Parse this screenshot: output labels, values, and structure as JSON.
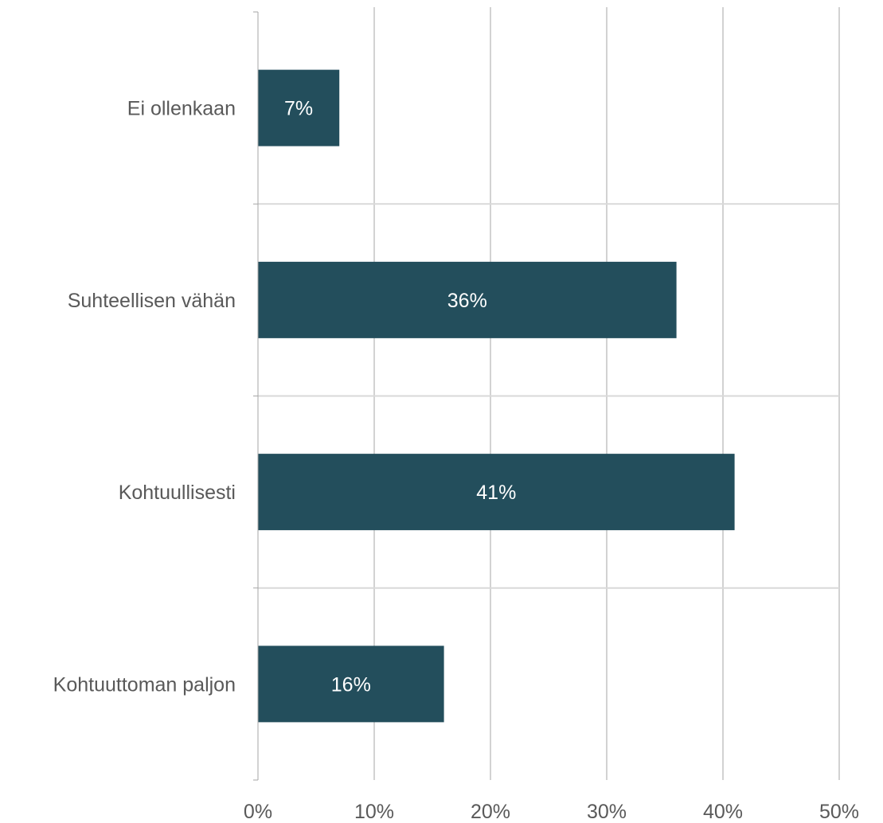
{
  "chart_data": {
    "type": "bar",
    "orientation": "horizontal",
    "categories": [
      "Ei ollenkaan",
      "Suhteellisen vähän",
      "Kohtuullisesti",
      "Kohtuuttoman paljon"
    ],
    "values": [
      7,
      36,
      41,
      16
    ],
    "data_labels": [
      "7%",
      "36%",
      "41%",
      "16%"
    ],
    "title": "",
    "xlabel": "",
    "ylabel": "",
    "xlim": [
      0,
      50
    ],
    "x_ticks": [
      0,
      10,
      20,
      30,
      40,
      50
    ],
    "x_tick_labels": [
      "0%",
      "10%",
      "20%",
      "30%",
      "40%",
      "50%"
    ],
    "grid": true,
    "legend": "none",
    "bar_color": "#234e5c"
  }
}
